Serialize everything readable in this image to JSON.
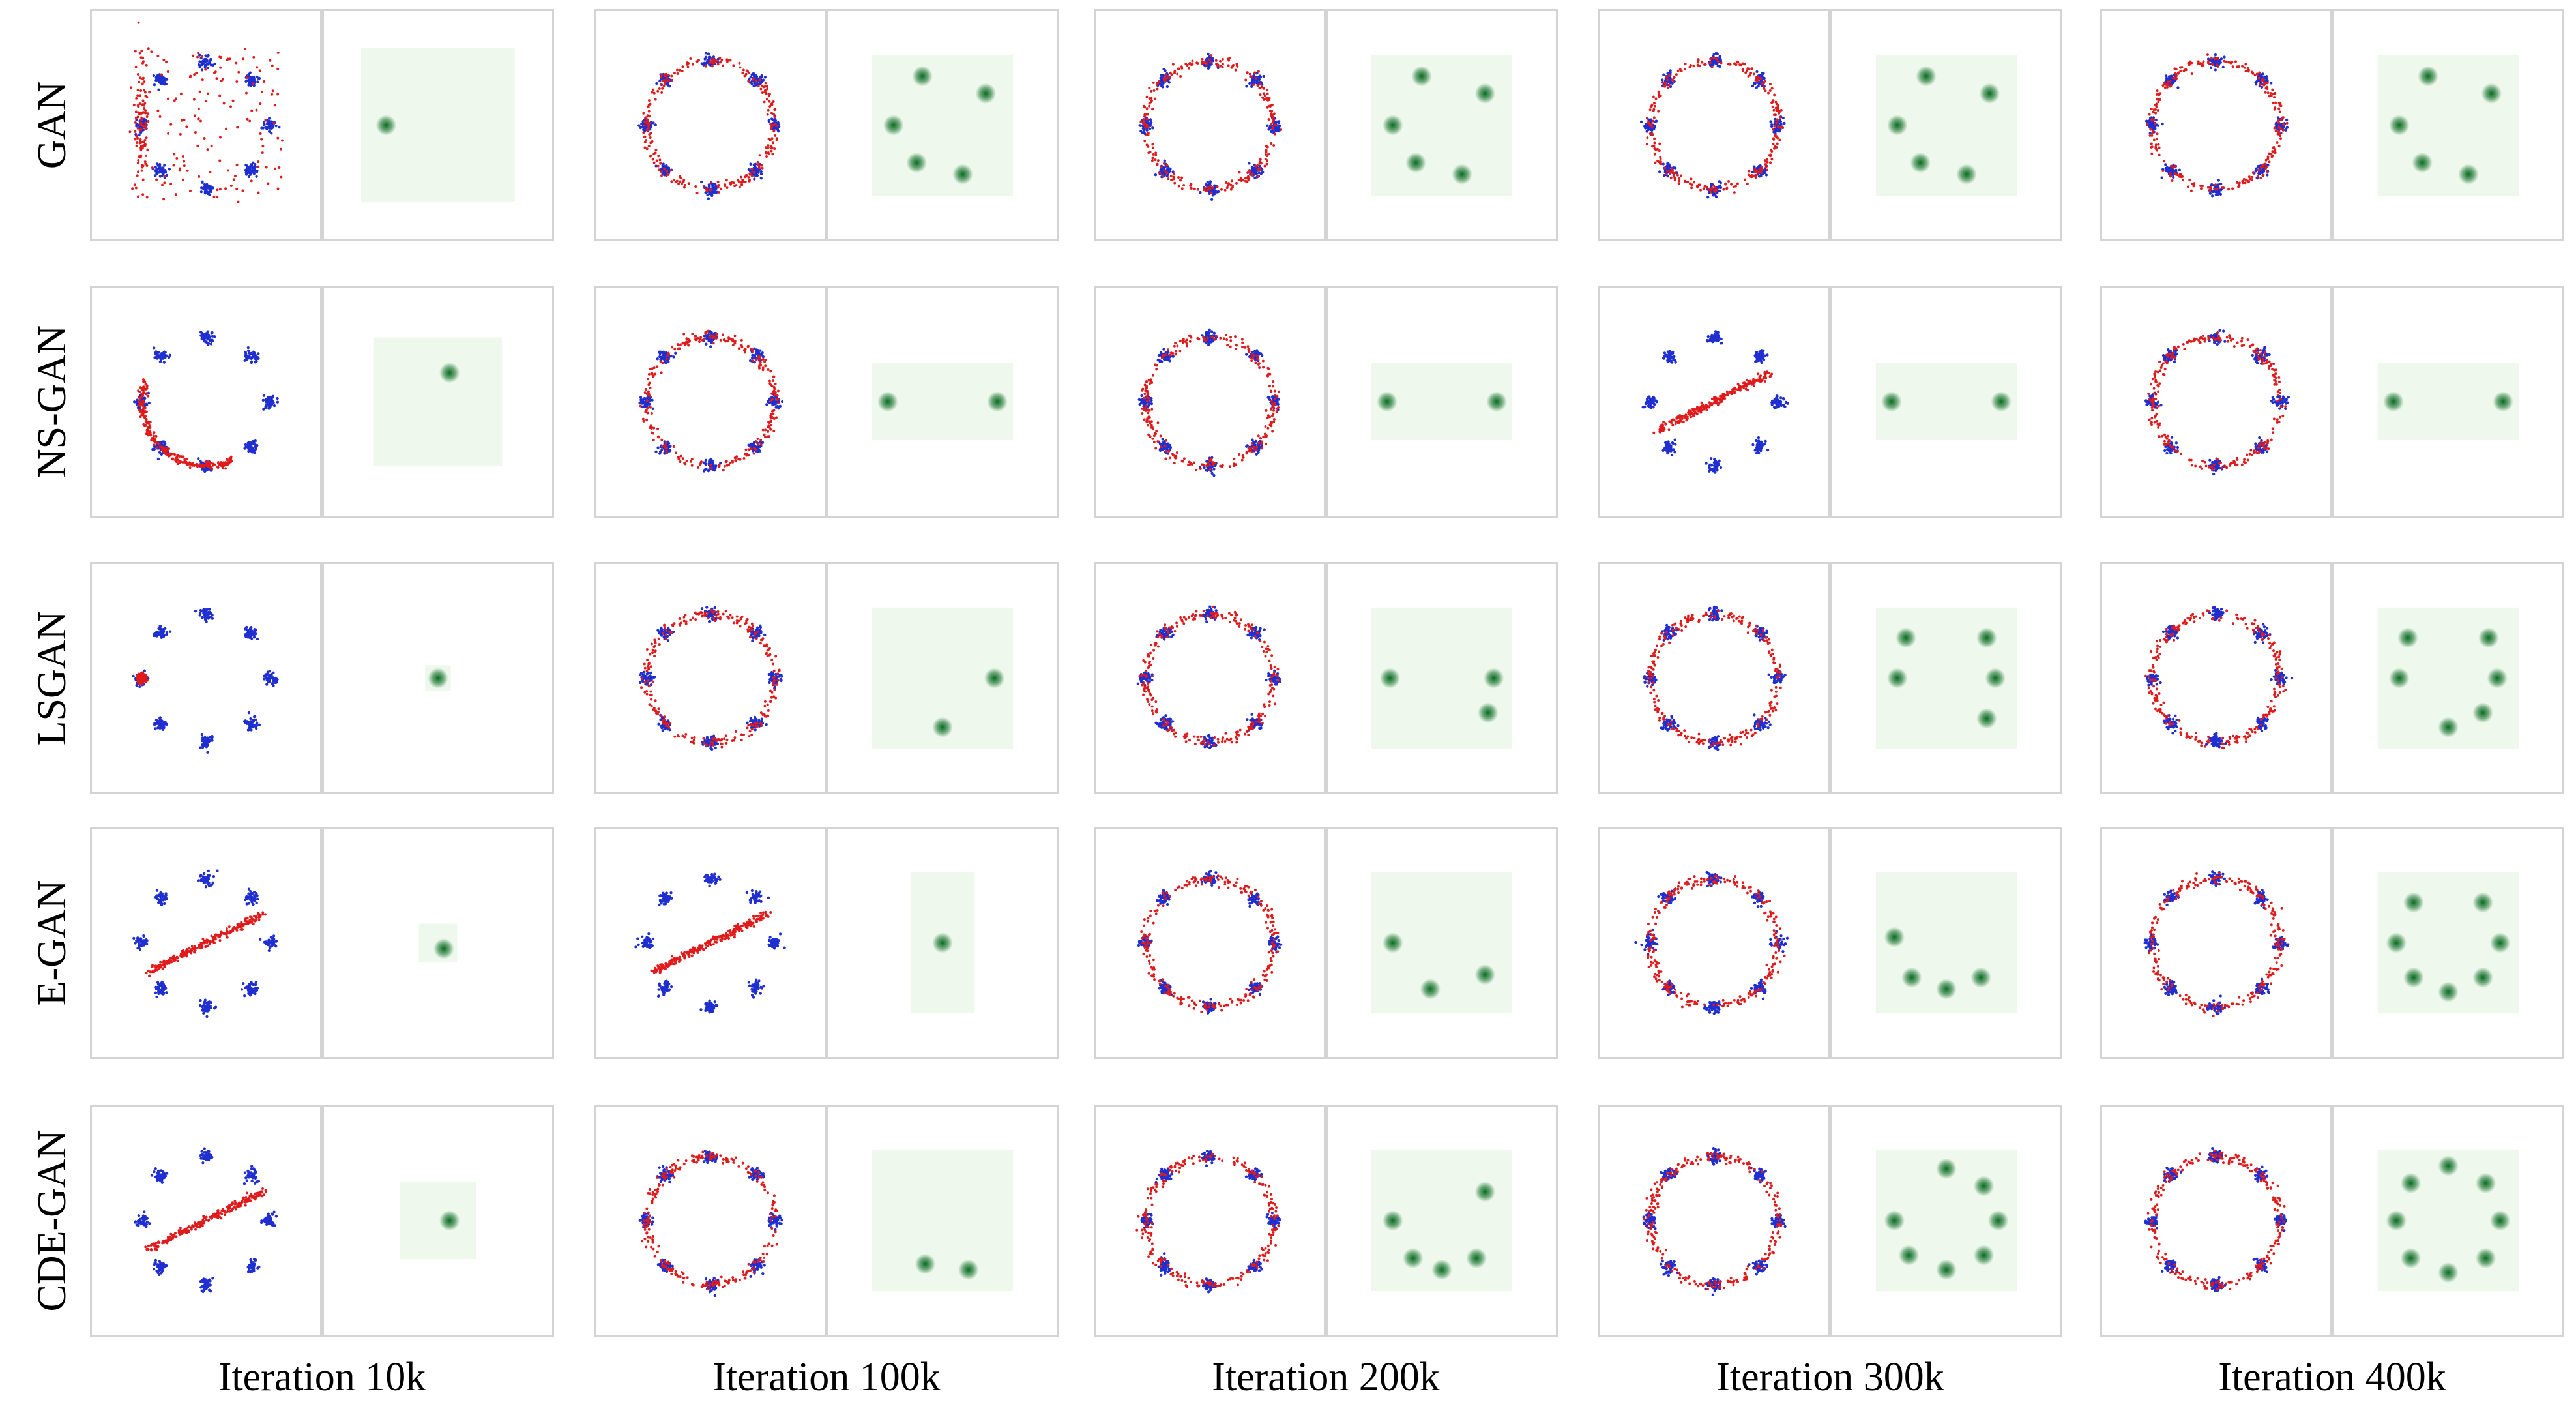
{
  "figure": {
    "methods": [
      "GAN",
      "NS-GAN",
      "LSGAN",
      "E-GAN",
      "CDE-GAN"
    ],
    "iterations": [
      "Iteration 10k",
      "Iteration 100k",
      "Iteration 200k",
      "Iteration 300k",
      "Iteration 400k"
    ]
  },
  "colors": {
    "real_samples": "#1f2fd0",
    "generated_samples": "#e01b1b",
    "density_low": "#eef8ec",
    "density_high": "#0a6b22",
    "panel_border": "#d4d4d4"
  },
  "chart_data": {
    "type": "scatter",
    "description_of_content": "8-Gaussian ring (blue real samples) with generated samples (red) and KDE of generator output (green)",
    "target_modes": 8,
    "rows": [
      {
        "method": "GAN",
        "cells": [
          {
            "iteration": "10k",
            "generated_pattern": "scattered",
            "density_modes": [
              [
                -0.9,
                0
              ]
            ],
            "density_extent": [
              [
                -1.2,
                1.2
              ],
              [
                -1.2,
                1.2
              ]
            ]
          },
          {
            "iteration": "100k",
            "generated_pattern": "ring",
            "density_modes": [
              [
                -0.35,
                0.85
              ],
              [
                0.75,
                0.55
              ],
              [
                -0.85,
                0.0
              ],
              [
                -0.45,
                -0.65
              ],
              [
                0.35,
                -0.85
              ]
            ],
            "density_extent": [
              [
                -1.1,
                1.1
              ],
              [
                -1.1,
                1.1
              ]
            ]
          },
          {
            "iteration": "200k",
            "generated_pattern": "ring",
            "density_modes": [
              [
                -0.35,
                0.85
              ],
              [
                0.75,
                0.55
              ],
              [
                -0.85,
                0.0
              ],
              [
                -0.45,
                -0.65
              ],
              [
                0.35,
                -0.85
              ]
            ],
            "density_extent": [
              [
                -1.1,
                1.1
              ],
              [
                -1.1,
                1.1
              ]
            ]
          },
          {
            "iteration": "300k",
            "generated_pattern": "ring",
            "density_modes": [
              [
                -0.35,
                0.85
              ],
              [
                0.75,
                0.55
              ],
              [
                -0.85,
                0.0
              ],
              [
                -0.45,
                -0.65
              ],
              [
                0.35,
                -0.85
              ]
            ],
            "density_extent": [
              [
                -1.1,
                1.1
              ],
              [
                -1.1,
                1.1
              ]
            ]
          },
          {
            "iteration": "400k",
            "generated_pattern": "ring",
            "density_modes": [
              [
                -0.35,
                0.85
              ],
              [
                0.75,
                0.55
              ],
              [
                -0.85,
                0.0
              ],
              [
                -0.45,
                -0.65
              ],
              [
                0.35,
                -0.85
              ]
            ],
            "density_extent": [
              [
                -1.1,
                1.1
              ],
              [
                -1.1,
                1.1
              ]
            ]
          }
        ]
      },
      {
        "method": "NS-GAN",
        "cells": [
          {
            "iteration": "10k",
            "generated_pattern": "arc",
            "density_modes": [
              [
                0.2,
                0.5
              ]
            ],
            "density_extent": [
              [
                -1.0,
                1.0
              ],
              [
                -1.0,
                1.0
              ]
            ]
          },
          {
            "iteration": "100k",
            "generated_pattern": "ring",
            "density_modes": [
              [
                -0.95,
                0
              ],
              [
                0.95,
                0
              ]
            ],
            "density_extent": [
              [
                -1.1,
                1.1
              ],
              [
                -0.6,
                0.6
              ]
            ]
          },
          {
            "iteration": "200k",
            "generated_pattern": "ring",
            "density_modes": [
              [
                -0.95,
                0
              ],
              [
                0.95,
                0
              ]
            ],
            "density_extent": [
              [
                -1.1,
                1.1
              ],
              [
                -0.6,
                0.6
              ]
            ]
          },
          {
            "iteration": "300k",
            "generated_pattern": "line",
            "density_modes": [
              [
                -0.95,
                0
              ],
              [
                0.95,
                0
              ]
            ],
            "density_extent": [
              [
                -1.1,
                1.1
              ],
              [
                -0.6,
                0.6
              ]
            ]
          },
          {
            "iteration": "400k",
            "generated_pattern": "ring",
            "density_modes": [
              [
                -0.95,
                0
              ],
              [
                0.95,
                0
              ]
            ],
            "density_extent": [
              [
                -1.1,
                1.1
              ],
              [
                -0.6,
                0.6
              ]
            ]
          }
        ]
      },
      {
        "method": "LSGAN",
        "cells": [
          {
            "iteration": "10k",
            "generated_pattern": "point",
            "density_modes": [
              [
                0,
                0
              ]
            ],
            "density_extent": [
              [
                -0.2,
                0.2
              ],
              [
                -0.2,
                0.2
              ]
            ]
          },
          {
            "iteration": "100k",
            "generated_pattern": "ring",
            "density_modes": [
              [
                0.9,
                0.0
              ],
              [
                0.0,
                -0.85
              ]
            ],
            "density_extent": [
              [
                -1.1,
                1.1
              ],
              [
                -1.1,
                1.1
              ]
            ]
          },
          {
            "iteration": "200k",
            "generated_pattern": "ring",
            "density_modes": [
              [
                -0.9,
                0.0
              ],
              [
                0.9,
                0.0
              ],
              [
                0.8,
                -0.6
              ]
            ],
            "density_extent": [
              [
                -1.1,
                1.1
              ],
              [
                -1.1,
                1.1
              ]
            ]
          },
          {
            "iteration": "300k",
            "generated_pattern": "ring",
            "density_modes": [
              [
                -0.7,
                0.7
              ],
              [
                0.7,
                0.7
              ],
              [
                -0.85,
                0.0
              ],
              [
                0.85,
                0.0
              ],
              [
                0.7,
                -0.7
              ]
            ],
            "density_extent": [
              [
                -1.1,
                1.1
              ],
              [
                -1.1,
                1.1
              ]
            ]
          },
          {
            "iteration": "400k",
            "generated_pattern": "ring",
            "density_modes": [
              [
                -0.7,
                0.7
              ],
              [
                0.7,
                0.7
              ],
              [
                -0.85,
                0.0
              ],
              [
                0.85,
                0.0
              ],
              [
                0.0,
                -0.85
              ],
              [
                0.6,
                -0.6
              ]
            ],
            "density_extent": [
              [
                -1.1,
                1.1
              ],
              [
                -1.1,
                1.1
              ]
            ]
          }
        ]
      },
      {
        "method": "E-GAN",
        "cells": [
          {
            "iteration": "10k",
            "generated_pattern": "line",
            "density_modes": [
              [
                0.1,
                -0.1
              ]
            ],
            "density_extent": [
              [
                -0.3,
                0.3
              ],
              [
                -0.3,
                0.3
              ]
            ]
          },
          {
            "iteration": "100k",
            "generated_pattern": "line",
            "density_modes": [
              [
                0.0,
                0.0
              ]
            ],
            "density_extent": [
              [
                -0.5,
                0.5
              ],
              [
                -1.1,
                1.1
              ]
            ]
          },
          {
            "iteration": "200k",
            "generated_pattern": "ring",
            "density_modes": [
              [
                -0.85,
                0.0
              ],
              [
                -0.2,
                -0.8
              ],
              [
                0.75,
                -0.55
              ]
            ],
            "density_extent": [
              [
                -1.1,
                1.1
              ],
              [
                -1.1,
                1.1
              ]
            ]
          },
          {
            "iteration": "300k",
            "generated_pattern": "ring",
            "density_modes": [
              [
                -0.9,
                0.1
              ],
              [
                -0.6,
                -0.6
              ],
              [
                0.0,
                -0.8
              ],
              [
                0.6,
                -0.6
              ]
            ],
            "density_extent": [
              [
                -1.1,
                1.1
              ],
              [
                -1.1,
                1.1
              ]
            ]
          },
          {
            "iteration": "400k",
            "generated_pattern": "ring",
            "density_modes": [
              [
                -0.6,
                0.7
              ],
              [
                0.6,
                0.7
              ],
              [
                -0.9,
                0.0
              ],
              [
                0.9,
                0.0
              ],
              [
                -0.6,
                -0.6
              ],
              [
                0.0,
                -0.85
              ],
              [
                0.6,
                -0.6
              ]
            ],
            "density_extent": [
              [
                -1.1,
                1.1
              ],
              [
                -1.1,
                1.1
              ]
            ]
          }
        ]
      },
      {
        "method": "CDE-GAN",
        "cells": [
          {
            "iteration": "10k",
            "generated_pattern": "line",
            "density_modes": [
              [
                0.2,
                0.0
              ]
            ],
            "density_extent": [
              [
                -0.6,
                0.6
              ],
              [
                -0.6,
                0.6
              ]
            ]
          },
          {
            "iteration": "100k",
            "generated_pattern": "ring",
            "density_modes": [
              [
                -0.3,
                -0.75
              ],
              [
                0.45,
                -0.85
              ]
            ],
            "density_extent": [
              [
                -1.1,
                1.1
              ],
              [
                -1.1,
                1.1
              ]
            ]
          },
          {
            "iteration": "200k",
            "generated_pattern": "ring",
            "density_modes": [
              [
                0.75,
                0.5
              ],
              [
                -0.85,
                0.0
              ],
              [
                -0.5,
                -0.65
              ],
              [
                0.0,
                -0.85
              ],
              [
                0.6,
                -0.65
              ]
            ],
            "density_extent": [
              [
                -1.1,
                1.1
              ],
              [
                -1.1,
                1.1
              ]
            ]
          },
          {
            "iteration": "300k",
            "generated_pattern": "ring",
            "density_modes": [
              [
                0.0,
                0.9
              ],
              [
                0.65,
                0.6
              ],
              [
                -0.9,
                0.0
              ],
              [
                0.9,
                0.0
              ],
              [
                -0.65,
                -0.6
              ],
              [
                0.0,
                -0.85
              ],
              [
                0.65,
                -0.6
              ]
            ],
            "density_extent": [
              [
                -1.1,
                1.1
              ],
              [
                -1.1,
                1.1
              ]
            ]
          },
          {
            "iteration": "400k",
            "generated_pattern": "ring",
            "density_modes": [
              [
                0.0,
                0.95
              ],
              [
                -0.65,
                0.65
              ],
              [
                0.65,
                0.65
              ],
              [
                -0.9,
                0.0
              ],
              [
                0.9,
                0.0
              ],
              [
                -0.65,
                -0.65
              ],
              [
                0.0,
                -0.9
              ],
              [
                0.65,
                -0.65
              ]
            ],
            "density_extent": [
              [
                -1.1,
                1.1
              ],
              [
                -1.1,
                1.1
              ]
            ]
          }
        ]
      }
    ]
  }
}
